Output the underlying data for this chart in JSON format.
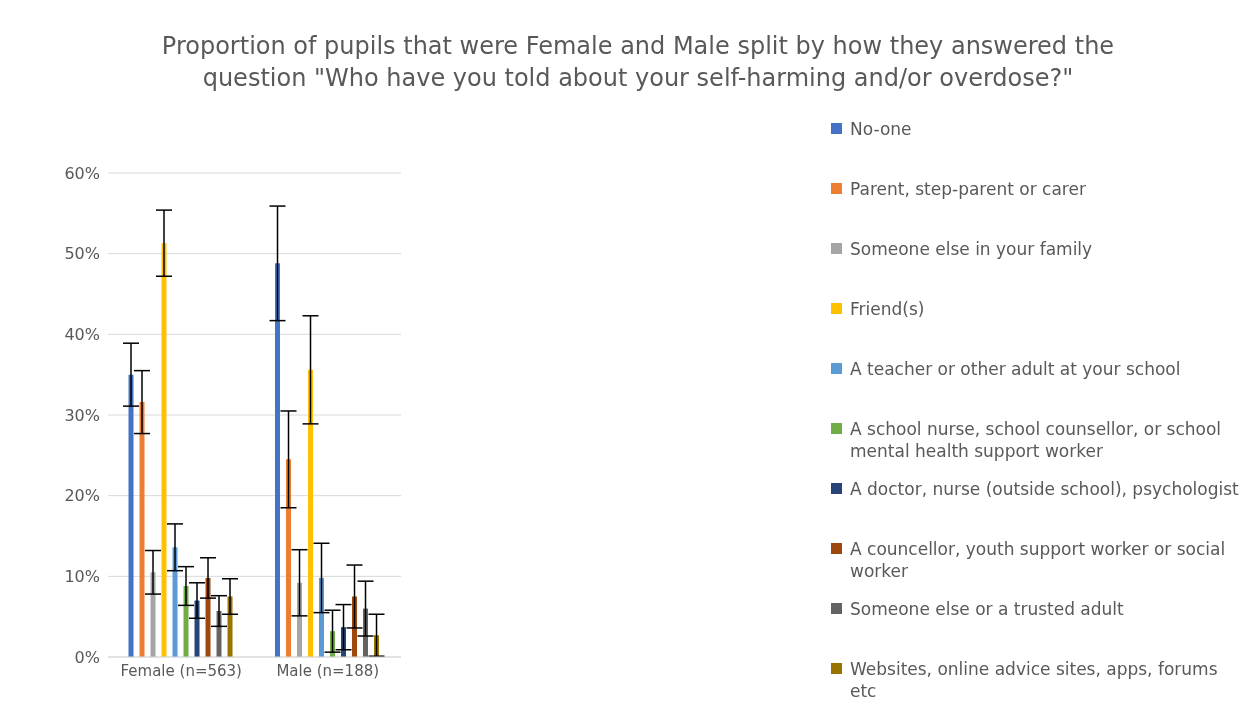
{
  "chart_data": {
    "type": "bar",
    "title": "Proportion of pupils that were Female and Male split by how they answered the question \"Who have you told about your self-harming and/or overdose?\"",
    "categories": [
      "Female (n=563)",
      "Male (n=188)"
    ],
    "series": [
      {
        "name": "No-one",
        "color": "#4472c4",
        "values": [
          35.0,
          48.8
        ],
        "errors": [
          3.9,
          7.1
        ]
      },
      {
        "name": "Parent, step-parent or carer",
        "color": "#ed7d31",
        "values": [
          31.6,
          24.5
        ],
        "errors": [
          3.9,
          6.0
        ]
      },
      {
        "name": "Someone else in your family",
        "color": "#a5a5a5",
        "values": [
          10.5,
          9.2
        ],
        "errors": [
          2.7,
          4.1
        ]
      },
      {
        "name": "Friend(s)",
        "color": "#ffc000",
        "values": [
          51.3,
          35.6
        ],
        "errors": [
          4.1,
          6.7
        ]
      },
      {
        "name": "A teacher or other adult at your school",
        "color": "#5b9bd5",
        "values": [
          13.6,
          9.8
        ],
        "errors": [
          2.9,
          4.3
        ]
      },
      {
        "name": "A school nurse, school counsellor, or school mental health support worker",
        "color": "#70ad47",
        "values": [
          8.8,
          3.2
        ],
        "errors": [
          2.4,
          2.6
        ]
      },
      {
        "name": "A doctor, nurse (outside school), psychologist",
        "color": "#264478",
        "values": [
          7.0,
          3.7
        ],
        "errors": [
          2.2,
          2.8
        ]
      },
      {
        "name": "A councellor, youth support worker or social worker",
        "color": "#9e480e",
        "values": [
          9.8,
          7.5
        ],
        "errors": [
          2.5,
          3.9
        ]
      },
      {
        "name": "Someone else or a trusted adult",
        "color": "#636363",
        "values": [
          5.7,
          6.0
        ],
        "errors": [
          1.9,
          3.4
        ]
      },
      {
        "name": "Websites, online advice sites, apps, forums etc",
        "color": "#997300",
        "values": [
          7.5,
          2.7
        ],
        "errors": [
          2.2,
          2.6
        ]
      }
    ],
    "ylim": [
      0,
      60
    ],
    "yticks": [
      {
        "value": 0,
        "label": "0%"
      },
      {
        "value": 10,
        "label": "10%"
      },
      {
        "value": 20,
        "label": "20%"
      },
      {
        "value": 30,
        "label": "30%"
      },
      {
        "value": 40,
        "label": "40%"
      },
      {
        "value": 50,
        "label": "50%"
      },
      {
        "value": 60,
        "label": "60%"
      }
    ],
    "grid": "y",
    "legend": "right"
  }
}
